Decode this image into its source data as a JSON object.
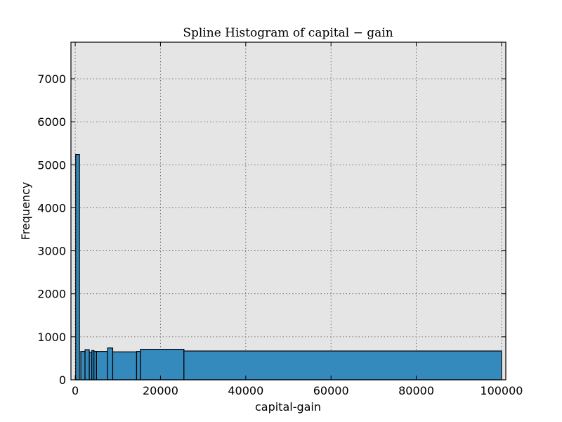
{
  "chart_data": {
    "type": "bar",
    "title": "Spline Histogram of capital − gain",
    "xlabel": "capital-gain",
    "ylabel": "Frequency",
    "xlim": [
      -1000,
      101000
    ],
    "ylim": [
      0,
      7850
    ],
    "xticks": [
      0,
      20000,
      40000,
      60000,
      80000,
      100000
    ],
    "yticks": [
      0,
      1000,
      2000,
      3000,
      4000,
      5000,
      6000,
      7000
    ],
    "grid": true,
    "bar_color": "#348abd",
    "background_color": "#e5e5e5",
    "bins": [
      {
        "x0": 114,
        "x1": 1000,
        "y": 5240
      },
      {
        "x0": 1300,
        "x1": 2300,
        "y": 660
      },
      {
        "x0": 2300,
        "x1": 3300,
        "y": 700
      },
      {
        "x0": 3300,
        "x1": 3900,
        "y": 640
      },
      {
        "x0": 3900,
        "x1": 4400,
        "y": 680
      },
      {
        "x0": 4400,
        "x1": 5000,
        "y": 660
      },
      {
        "x0": 5000,
        "x1": 7600,
        "y": 660
      },
      {
        "x0": 7600,
        "x1": 8800,
        "y": 740
      },
      {
        "x0": 8800,
        "x1": 14400,
        "y": 650
      },
      {
        "x0": 14400,
        "x1": 15300,
        "y": 660
      },
      {
        "x0": 15300,
        "x1": 25500,
        "y": 710
      },
      {
        "x0": 25500,
        "x1": 99999,
        "y": 670
      }
    ]
  }
}
